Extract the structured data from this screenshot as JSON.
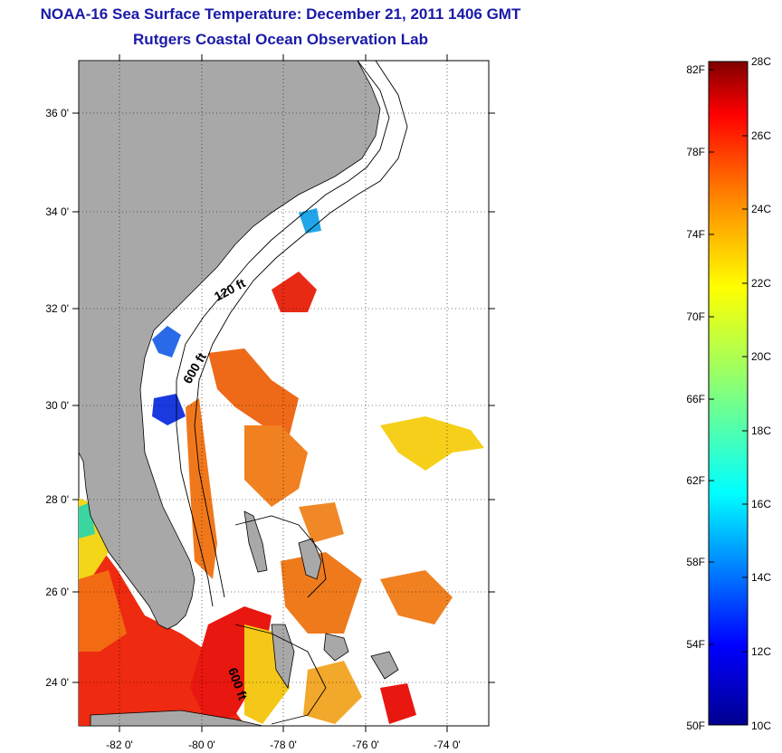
{
  "title": {
    "line1": "NOAA-16 Sea Surface Temperature:  December 21, 2011 1406 GMT",
    "line2": "Rutgers Coastal Ocean Observation Lab"
  },
  "map": {
    "lon_ticks": [
      "-82 0'",
      "-80 0'",
      "-78 0'",
      "-76 0'",
      "-74 0'"
    ],
    "lat_ticks": [
      "36 0'",
      "34 0'",
      "32 0'",
      "30 0'",
      "28 0'",
      "26 0'",
      "24 0'"
    ],
    "contour_labels": {
      "shelf": "120 ft",
      "slope": "600 ft",
      "south": "600 ft"
    },
    "land_color": "#a8a8a8"
  },
  "colorbar": {
    "fahrenheit_labels": [
      "82F",
      "78F",
      "74F",
      "70F",
      "66F",
      "62F",
      "58F",
      "54F",
      "50F"
    ],
    "celsius_labels": [
      "28C",
      "26C",
      "24C",
      "22C",
      "20C",
      "18C",
      "16C",
      "14C",
      "12C",
      "10C"
    ],
    "colormap": "jet",
    "range_celsius": [
      10,
      28
    ]
  }
}
